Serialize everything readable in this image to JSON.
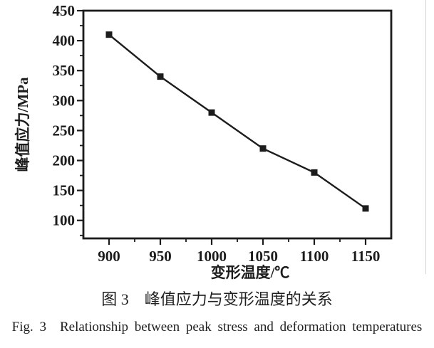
{
  "figure": {
    "caption_zh": "图 3　峰值应力与变形温度的关系",
    "caption_en": "Fig. 3 Relationship between peak stress and deformation temperatures"
  },
  "chart_data": {
    "type": "line",
    "title": "",
    "xlabel": "变形温度/℃",
    "ylabel": "峰值应力/MPa",
    "x": [
      900,
      950,
      1000,
      1050,
      1100,
      1150
    ],
    "values": [
      410,
      340,
      280,
      220,
      180,
      120
    ],
    "series_name": "峰值应力",
    "xlim": [
      875,
      1175
    ],
    "ylim": [
      70,
      450
    ],
    "x_major_ticks": [
      900,
      950,
      1000,
      1050,
      1100,
      1150
    ],
    "y_major_ticks": [
      100,
      150,
      200,
      250,
      300,
      350,
      400,
      450
    ],
    "minor_tick_step": 25,
    "grid": false,
    "legend_position": "none",
    "marker": "filled-square",
    "ink_color": "#1c1c1c",
    "background_color": "#ffffff"
  }
}
